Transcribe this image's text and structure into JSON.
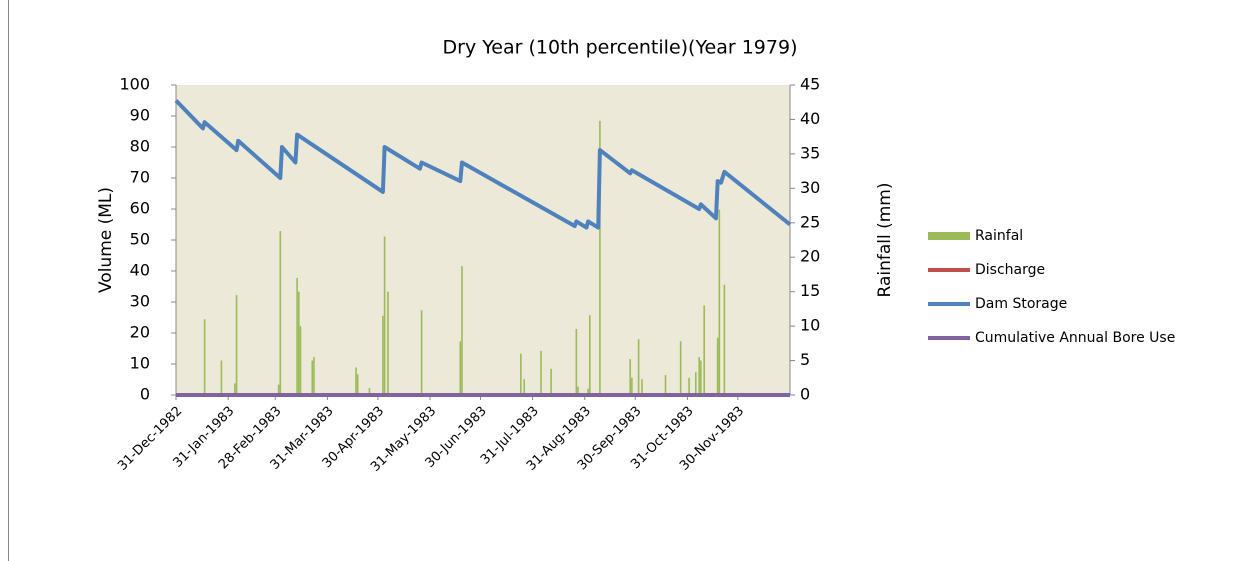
{
  "chart_data": {
    "type": "bar",
    "title": "Dry Year (10th percentile)(Year 1979)",
    "ylabel": "Volume (ML)",
    "y2label": "Rainfall (mm)",
    "xlim": [
      "1982-12-31",
      "1983-12-31"
    ],
    "xticks": [
      {
        "value": "1982-12-31",
        "label": "31-Dec-1982"
      },
      {
        "value": "1983-01-31",
        "label": "31-Jan-1983"
      },
      {
        "value": "1983-02-28",
        "label": "28-Feb-1983"
      },
      {
        "value": "1983-03-31",
        "label": "31-Mar-1983"
      },
      {
        "value": "1983-04-30",
        "label": "30-Apr-1983"
      },
      {
        "value": "1983-05-31",
        "label": "31-May-1983"
      },
      {
        "value": "1983-06-30",
        "label": "30-Jun-1983"
      },
      {
        "value": "1983-07-31",
        "label": "31-Jul-1983"
      },
      {
        "value": "1983-08-31",
        "label": "31-Aug-1983"
      },
      {
        "value": "1983-09-30",
        "label": "30-Sep-1983"
      },
      {
        "value": "1983-10-31",
        "label": "31-Oct-1983"
      },
      {
        "value": "1983-11-30",
        "label": "30-Nov-1983"
      }
    ],
    "ylim": [
      0,
      100
    ],
    "yticks": [
      0,
      10,
      20,
      30,
      40,
      50,
      60,
      70,
      80,
      90,
      100
    ],
    "y2lim": [
      0,
      45
    ],
    "y2ticks": [
      0,
      5,
      10,
      15,
      20,
      25,
      30,
      35,
      40,
      45
    ],
    "background": "#ece9d8",
    "series": [
      {
        "name": "Rainfal",
        "color": "#9bbb59",
        "type": "bar",
        "axis": "y2",
        "x": [
          "1983-01-17",
          "1983-01-27",
          "1983-02-04",
          "1983-02-05",
          "1983-03-02",
          "1983-03-03",
          "1983-03-13",
          "1983-03-14",
          "1983-03-15",
          "1983-03-22",
          "1983-03-23",
          "1983-04-17",
          "1983-04-18",
          "1983-04-25",
          "1983-05-03",
          "1983-05-04",
          "1983-05-06",
          "1983-05-26",
          "1983-06-18",
          "1983-06-19",
          "1983-07-24",
          "1983-07-26",
          "1983-08-05",
          "1983-08-11",
          "1983-08-26",
          "1983-08-27",
          "1983-09-02",
          "1983-09-03",
          "1983-09-09",
          "1983-09-27",
          "1983-09-28",
          "1983-10-02",
          "1983-10-04",
          "1983-10-18",
          "1983-10-27",
          "1983-11-01",
          "1983-11-05",
          "1983-11-07",
          "1983-11-08",
          "1983-11-10",
          "1983-11-18",
          "1983-11-19",
          "1983-11-22"
        ],
        "values": [
          11,
          5,
          1.7,
          14.5,
          1.5,
          23.8,
          17,
          15,
          10,
          5,
          5.5,
          4,
          3,
          1,
          11.5,
          23,
          15,
          12.3,
          7.8,
          18.7,
          6,
          2.3,
          6.4,
          3.8,
          9.6,
          1.2,
          0.9,
          11.6,
          39.8,
          5.2,
          2.5,
          8.1,
          2.3,
          2.9,
          7.8,
          2.5,
          3.3,
          5.5,
          5,
          13,
          8.3,
          26.9,
          16
        ]
      },
      {
        "name": "Discharge",
        "color": "#c0504d",
        "type": "line",
        "x": [
          "1982-12-31",
          "1983-12-31"
        ],
        "values": [
          0,
          0
        ]
      },
      {
        "name": "Dam Storage",
        "color": "#4f81bd",
        "type": "line",
        "x": [
          "1982-12-31",
          "1983-01-16",
          "1983-01-17",
          "1983-02-05",
          "1983-02-06",
          "1983-03-03",
          "1983-03-04",
          "1983-03-12",
          "1983-03-13",
          "1983-05-03",
          "1983-05-04",
          "1983-05-25",
          "1983-05-26",
          "1983-06-18",
          "1983-06-19",
          "1983-08-25",
          "1983-08-26",
          "1983-09-01",
          "1983-09-02",
          "1983-09-08",
          "1983-09-09",
          "1983-09-27",
          "1983-09-28",
          "1983-11-07",
          "1983-11-08",
          "1983-11-17",
          "1983-11-18",
          "1983-11-20",
          "1983-11-22",
          "1983-12-31"
        ],
        "values": [
          95,
          86,
          88,
          79,
          82,
          70,
          80,
          75,
          84,
          65.5,
          80,
          73,
          75,
          69,
          75,
          54.5,
          56,
          54,
          56,
          54,
          79,
          71.5,
          72.5,
          60,
          61.5,
          57,
          69,
          68.5,
          72,
          55
        ]
      },
      {
        "name": "Cumulative Annual Bore Use",
        "color": "#8064a2",
        "type": "line",
        "x": [
          "1982-12-31",
          "1983-12-31"
        ],
        "values": [
          0,
          0
        ]
      }
    ]
  }
}
